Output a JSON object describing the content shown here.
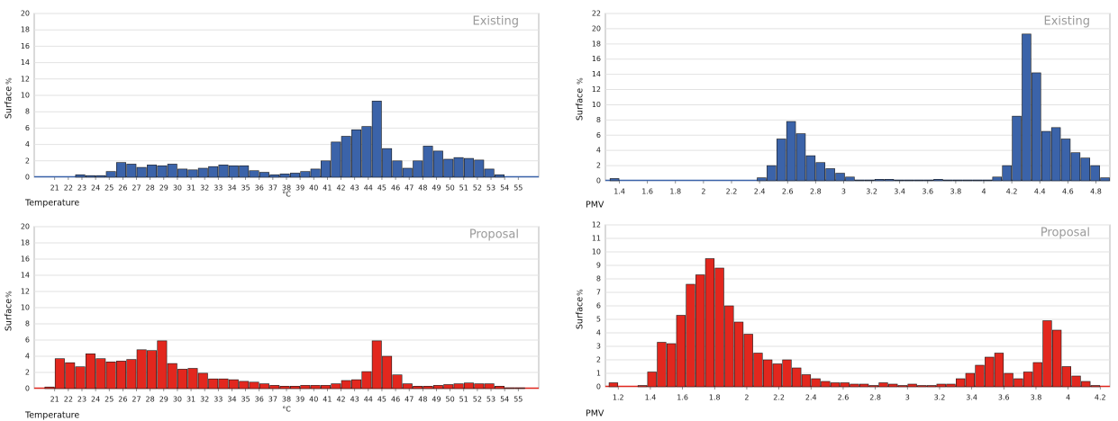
{
  "chart_data": [
    {
      "type": "histogram",
      "label": "Existing",
      "ylabel": "Surface",
      "y_unit": "%",
      "xlabel": "Temperature",
      "x_unit": "°C",
      "color": "#3b63a9",
      "bins": [
        20.25,
        21,
        21.75,
        22.5,
        23.25,
        24,
        24.75,
        25.5,
        26.25,
        27,
        27.75,
        28.5,
        29.25,
        30,
        30.75,
        31.5,
        32.25,
        33,
        33.75,
        34.5,
        35.25,
        36,
        36.75,
        37.5,
        38.25,
        39,
        39.75,
        40.5,
        41.25,
        42,
        42.75,
        43.5,
        44.25,
        45,
        45.75,
        46.5,
        47.25,
        48,
        48.75,
        49.5,
        50.25,
        51,
        51.75,
        52.5,
        53.25,
        54,
        54.75,
        55.5,
        56.25
      ],
      "values": [
        0,
        0,
        0,
        0.3,
        0.2,
        0.2,
        0.7,
        1.8,
        1.6,
        1.2,
        1.5,
        1.4,
        1.6,
        1.0,
        0.9,
        1.1,
        1.3,
        1.5,
        1.4,
        1.4,
        0.8,
        0.6,
        0.3,
        0.4,
        0.5,
        0.7,
        1.0,
        2.0,
        4.3,
        5.0,
        5.8,
        6.2,
        9.3,
        3.5,
        2.0,
        1.1,
        2.0,
        3.8,
        3.2,
        2.2,
        2.4,
        2.3,
        2.1,
        1.0,
        0.3,
        0,
        0,
        0
      ],
      "xlim": [
        19.5,
        56.5
      ],
      "xticks": [
        21,
        22,
        23,
        24,
        25,
        26,
        27,
        28,
        29,
        30,
        31,
        32,
        33,
        34,
        35,
        36,
        37,
        38,
        39,
        40,
        41,
        42,
        43,
        44,
        45,
        46,
        47,
        48,
        49,
        50,
        51,
        52,
        53,
        54,
        55
      ],
      "ylim": [
        0,
        20
      ],
      "yticks": [
        0,
        2,
        4,
        6,
        8,
        10,
        12,
        14,
        16,
        18,
        20
      ],
      "grid": true
    },
    {
      "type": "histogram",
      "label": "Proposal",
      "ylabel": "Surface",
      "y_unit": "%",
      "xlabel": "Temperature",
      "x_unit": "°C",
      "color": "#e2271e",
      "bins": [
        20.25,
        21,
        21.75,
        22.5,
        23.25,
        24,
        24.75,
        25.5,
        26.25,
        27,
        27.75,
        28.5,
        29.25,
        30,
        30.75,
        31.5,
        32.25,
        33,
        33.75,
        34.5,
        35.25,
        36,
        36.75,
        37.5,
        38.25,
        39,
        39.75,
        40.5,
        41.25,
        42,
        42.75,
        43.5,
        44.25,
        45,
        45.75,
        46.5,
        47.25,
        48,
        48.75,
        49.5,
        50.25,
        51,
        51.75,
        52.5,
        53.25,
        54,
        54.75,
        55.5,
        56.25
      ],
      "values": [
        0.2,
        3.7,
        3.2,
        2.7,
        4.3,
        3.7,
        3.3,
        3.4,
        3.6,
        4.8,
        4.7,
        5.9,
        3.1,
        2.4,
        2.5,
        1.9,
        1.2,
        1.2,
        1.1,
        0.9,
        0.8,
        0.6,
        0.4,
        0.3,
        0.3,
        0.4,
        0.4,
        0.4,
        0.6,
        1.0,
        1.1,
        2.1,
        5.9,
        4.0,
        1.7,
        0.6,
        0.3,
        0.3,
        0.4,
        0.5,
        0.6,
        0.7,
        0.6,
        0.6,
        0.3,
        0.1,
        0.1,
        0
      ],
      "xlim": [
        19.5,
        56.5
      ],
      "xticks": [
        21,
        22,
        23,
        24,
        25,
        26,
        27,
        28,
        29,
        30,
        31,
        32,
        33,
        34,
        35,
        36,
        37,
        38,
        39,
        40,
        41,
        42,
        43,
        44,
        45,
        46,
        47,
        48,
        49,
        50,
        51,
        52,
        53,
        54,
        55
      ],
      "ylim": [
        0,
        20
      ],
      "yticks": [
        0,
        2,
        4,
        6,
        8,
        10,
        12,
        14,
        16,
        18,
        20
      ],
      "grid": true
    },
    {
      "type": "histogram",
      "label": "Existing",
      "ylabel": "Surface",
      "y_unit": "%",
      "xlabel": "PMV",
      "color": "#3b63a9",
      "bins": [
        1.33,
        1.4,
        1.47,
        1.54,
        1.61,
        1.68,
        1.75,
        1.82,
        1.89,
        1.96,
        2.03,
        2.1,
        2.17,
        2.24,
        2.31,
        2.38,
        2.45,
        2.52,
        2.59,
        2.66,
        2.73,
        2.8,
        2.87,
        2.94,
        3.01,
        3.08,
        3.15,
        3.22,
        3.29,
        3.36,
        3.43,
        3.5,
        3.57,
        3.64,
        3.71,
        3.78,
        3.85,
        3.92,
        3.99,
        4.06,
        4.13,
        4.2,
        4.27,
        4.34,
        4.41,
        4.48,
        4.55,
        4.62,
        4.69,
        4.76,
        4.83,
        4.9
      ],
      "values": [
        0.3,
        0,
        0,
        0,
        0,
        0,
        0,
        0,
        0,
        0,
        0,
        0,
        0,
        0,
        0,
        0.4,
        2.0,
        5.5,
        7.8,
        6.2,
        3.3,
        2.4,
        1.6,
        1.0,
        0.5,
        0.1,
        0.1,
        0.2,
        0.2,
        0.1,
        0.1,
        0.1,
        0.1,
        0.2,
        0.1,
        0.1,
        0.1,
        0.1,
        0.1,
        0.5,
        2.0,
        8.5,
        19.3,
        14.2,
        6.5,
        7.0,
        5.5,
        3.7,
        3.0,
        2.0,
        0.4
      ],
      "xlim": [
        1.3,
        4.9
      ],
      "xticks": [
        1.4,
        1.6,
        1.8,
        2,
        2.2,
        2.4,
        2.6,
        2.8,
        3,
        3.2,
        3.4,
        3.6,
        3.8,
        4,
        4.2,
        4.4,
        4.6,
        4.8
      ],
      "ylim": [
        0,
        22
      ],
      "yticks": [
        0,
        2,
        4,
        6,
        8,
        10,
        12,
        14,
        16,
        18,
        20,
        22
      ],
      "grid": true
    },
    {
      "type": "histogram",
      "label": "Proposal",
      "ylabel": "Surface",
      "y_unit": "%",
      "xlabel": "PMV",
      "color": "#e2271e",
      "bins": [
        1.14,
        1.2,
        1.26,
        1.32,
        1.38,
        1.44,
        1.5,
        1.56,
        1.62,
        1.68,
        1.74,
        1.8,
        1.86,
        1.92,
        1.98,
        2.04,
        2.1,
        2.16,
        2.22,
        2.28,
        2.34,
        2.4,
        2.46,
        2.52,
        2.58,
        2.64,
        2.7,
        2.76,
        2.82,
        2.88,
        2.94,
        3,
        3.06,
        3.12,
        3.18,
        3.24,
        3.3,
        3.36,
        3.42,
        3.48,
        3.54,
        3.6,
        3.66,
        3.72,
        3.78,
        3.84,
        3.9,
        3.96,
        4.02,
        4.08,
        4.14,
        4.2,
        4.26
      ],
      "values": [
        0.3,
        0,
        0,
        0.1,
        1.1,
        3.3,
        3.2,
        5.3,
        7.6,
        8.3,
        9.5,
        8.8,
        6.0,
        4.8,
        3.9,
        2.5,
        2.0,
        1.7,
        2.0,
        1.4,
        0.9,
        0.6,
        0.4,
        0.3,
        0.3,
        0.2,
        0.2,
        0.1,
        0.3,
        0.2,
        0.1,
        0.2,
        0.1,
        0.1,
        0.2,
        0.2,
        0.6,
        1.0,
        1.6,
        2.2,
        2.5,
        1.0,
        0.6,
        1.1,
        1.8,
        4.9,
        4.2,
        1.5,
        0.8,
        0.4,
        0.1,
        0
      ],
      "xlim": [
        1.12,
        4.26
      ],
      "xticks": [
        1.2,
        1.4,
        1.6,
        1.8,
        2,
        2.2,
        2.4,
        2.6,
        2.8,
        3,
        3.2,
        3.4,
        3.6,
        3.8,
        4,
        4.2
      ],
      "ylim": [
        0,
        12
      ],
      "yticks": [
        0,
        1,
        2,
        3,
        4,
        5,
        6,
        7,
        8,
        9,
        10,
        11,
        12
      ],
      "grid": true
    }
  ]
}
